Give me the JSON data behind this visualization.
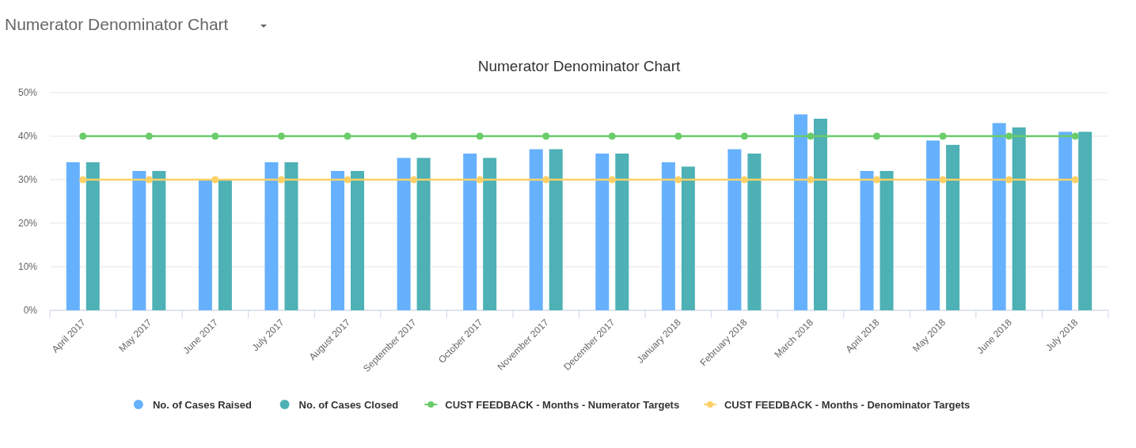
{
  "chart_data": {
    "type": "bar",
    "title": "Numerator Denominator Chart",
    "annotations": [
      "Numerator Denominator Chart"
    ],
    "categories": [
      "April 2017",
      "May 2017",
      "June 2017",
      "July 2017",
      "August 2017",
      "September 2017",
      "October 2017",
      "November 2017",
      "December 2017",
      "January 2018",
      "February 2018",
      "March 2018",
      "April 2018",
      "May 2018",
      "June 2018",
      "July 2018"
    ],
    "series": [
      {
        "name": "No. of Cases Raised",
        "color": "#66b1fd",
        "values": [
          34,
          32,
          30,
          34,
          32,
          35,
          36,
          37,
          36,
          34,
          37,
          45,
          32,
          39,
          43,
          41
        ]
      },
      {
        "name": "No. of Cases Closed",
        "color": "#4db1b5",
        "values": [
          34,
          32,
          30,
          34,
          32,
          35,
          35,
          37,
          36,
          33,
          36,
          44,
          32,
          38,
          42,
          41
        ]
      },
      {
        "name": "CUST FEEDBACK - Months - Numerator Targets",
        "type": "line",
        "color": "#6acc6a",
        "values": [
          40,
          40,
          40,
          40,
          40,
          40,
          40,
          40,
          40,
          40,
          40,
          40,
          40,
          40,
          40,
          40
        ]
      },
      {
        "name": "CUST FEEDBACK - Months - Denominator Targets",
        "type": "line",
        "color": "#fdd166",
        "values": [
          30,
          30,
          30,
          30,
          30,
          30,
          30,
          30,
          30,
          30,
          30,
          30,
          30,
          30,
          30,
          30
        ]
      }
    ],
    "ylim": [
      0,
      50
    ],
    "yticks": [
      {
        "value": 0,
        "label": "0%"
      },
      {
        "value": 10,
        "label": "10%"
      },
      {
        "value": 20,
        "label": "20%"
      },
      {
        "value": 30,
        "label": "30%"
      },
      {
        "value": 40,
        "label": "40%"
      },
      {
        "value": 50,
        "label": "50%"
      }
    ],
    "grid": "y",
    "legend": "bottom",
    "marker": "circle"
  }
}
